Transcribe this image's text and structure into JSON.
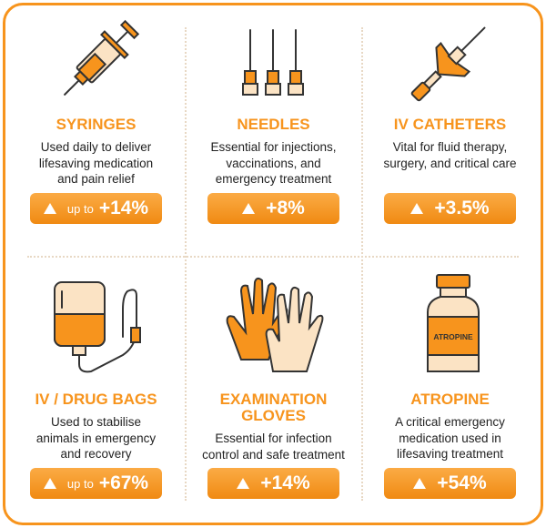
{
  "cards": [
    {
      "title": [
        "SYRINGES"
      ],
      "description": [
        "Used daily to deliver",
        "lifesaving medication",
        "and pain relief"
      ],
      "badge_prefix": "up to",
      "badge_value": "+14%"
    },
    {
      "title": [
        "NEEDLES"
      ],
      "description": [
        "Essential for injections,",
        "vaccinations, and",
        "emergency treatment"
      ],
      "badge_value": "+8%"
    },
    {
      "title": [
        "IV CATHETERS"
      ],
      "description": [
        "Vital for fluid therapy,",
        "surgery, and critical care"
      ],
      "badge_value": "+3.5%"
    },
    {
      "title": [
        "IV / DRUG BAGS"
      ],
      "description": [
        "Used to stabilise",
        "animals in emergency",
        "and recovery"
      ],
      "badge_prefix": "up to",
      "badge_value": "+67%"
    },
    {
      "title": [
        "EXAMINATION",
        "GLOVES"
      ],
      "description": [
        "Essential for infection",
        "control and safe treatment"
      ],
      "badge_value": "+14%"
    },
    {
      "title": [
        "ATROPINE"
      ],
      "description": [
        "A critical emergency",
        "medication used in",
        "lifesaving treatment"
      ],
      "badge_value": "+54%",
      "icon_label": "ATROPINE"
    }
  ]
}
